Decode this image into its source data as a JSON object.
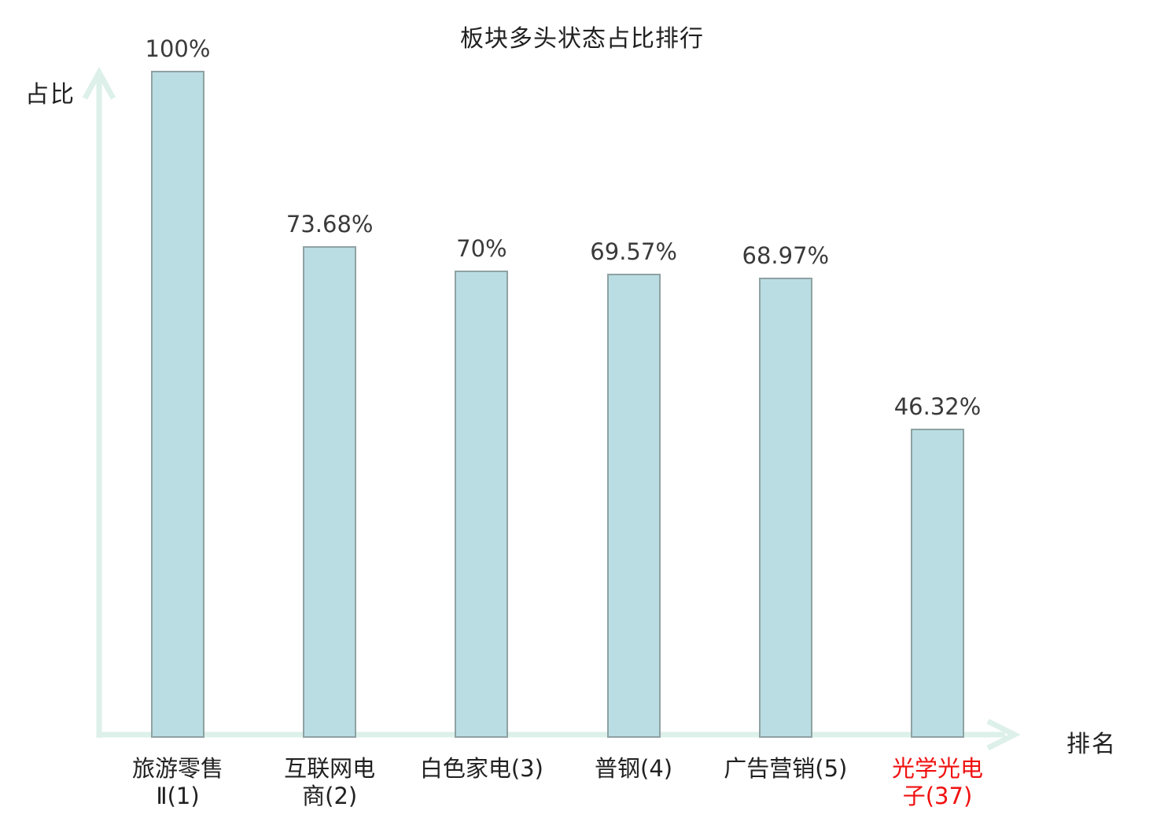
{
  "chart_data": {
    "type": "bar",
    "title": "板块多头状态占比排行",
    "ylabel": "占比",
    "xlabel": "排名",
    "ylim": [
      0,
      100
    ],
    "grid": false,
    "legend": null,
    "value_suffix": "%",
    "colors": {
      "bar_fill": "#b9dde2",
      "bar_border": "#8fa2a3",
      "axis": "#ddf0ea",
      "text": "#212121",
      "value_text": "#3a3a3a",
      "highlight_text": "#f01010"
    },
    "bars": [
      {
        "category": "旅游零售Ⅱ(1)",
        "category_lines": [
          "旅游零售",
          "Ⅱ(1)"
        ],
        "value": 100,
        "value_label": "100%",
        "highlighted": false
      },
      {
        "category": "互联网电商(2)",
        "category_lines": [
          "互联网电",
          "商(2)"
        ],
        "value": 73.68,
        "value_label": "73.68%",
        "highlighted": false
      },
      {
        "category": "白色家电(3)",
        "category_lines": [
          "白色家电(3)"
        ],
        "value": 70,
        "value_label": "70%",
        "highlighted": false
      },
      {
        "category": "普钢(4)",
        "category_lines": [
          "普钢(4)"
        ],
        "value": 69.57,
        "value_label": "69.57%",
        "highlighted": false
      },
      {
        "category": "广告营销(5)",
        "category_lines": [
          "广告营销(5)"
        ],
        "value": 68.97,
        "value_label": "68.97%",
        "highlighted": false
      },
      {
        "category": "光学光电子(37)",
        "category_lines": [
          "光学光电",
          "子(37)"
        ],
        "value": 46.32,
        "value_label": "46.32%",
        "highlighted": true
      }
    ]
  }
}
